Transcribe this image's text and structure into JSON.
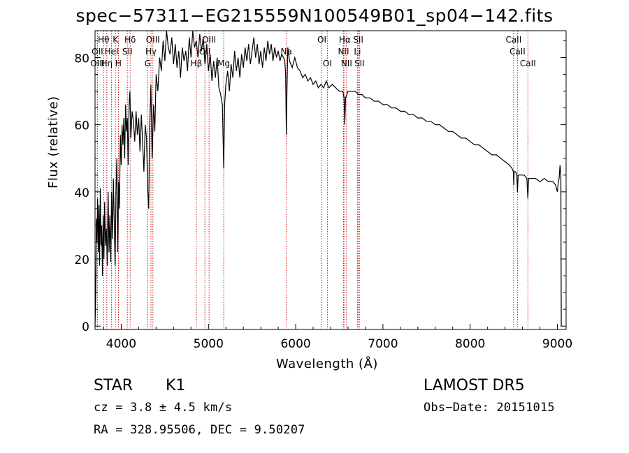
{
  "chart_data": {
    "type": "line",
    "title": "spec−57311−EG215559N100549B01_sp04−142.fits",
    "xlabel": "Wavelength (Å)",
    "ylabel": "Flux (relative)",
    "xlim": [
      3700,
      9100
    ],
    "ylim": [
      -1,
      88
    ],
    "x_ticks": [
      4000,
      5000,
      6000,
      7000,
      8000,
      9000
    ],
    "y_ticks": [
      0,
      20,
      40,
      60,
      80
    ],
    "grid": false,
    "series": [
      {
        "points": [
          [
            3700,
            0
          ],
          [
            3708,
            10
          ],
          [
            3715,
            32
          ],
          [
            3722,
            25
          ],
          [
            3730,
            38
          ],
          [
            3738,
            22
          ],
          [
            3745,
            36
          ],
          [
            3752,
            18
          ],
          [
            3760,
            41
          ],
          [
            3768,
            24
          ],
          [
            3776,
            30
          ],
          [
            3785,
            15
          ],
          [
            3793,
            33
          ],
          [
            3802,
            20
          ],
          [
            3810,
            37
          ],
          [
            3820,
            24
          ],
          [
            3830,
            29
          ],
          [
            3840,
            18
          ],
          [
            3850,
            40
          ],
          [
            3860,
            22
          ],
          [
            3870,
            33
          ],
          [
            3880,
            19
          ],
          [
            3890,
            40
          ],
          [
            3900,
            26
          ],
          [
            3910,
            44
          ],
          [
            3920,
            31
          ],
          [
            3930,
            18
          ],
          [
            3940,
            40
          ],
          [
            3950,
            50
          ],
          [
            3960,
            22
          ],
          [
            3970,
            43
          ],
          [
            3980,
            35
          ],
          [
            3990,
            57
          ],
          [
            4000,
            48
          ],
          [
            4010,
            60
          ],
          [
            4020,
            54
          ],
          [
            4030,
            62
          ],
          [
            4040,
            50
          ],
          [
            4050,
            66
          ],
          [
            4060,
            58
          ],
          [
            4070,
            62
          ],
          [
            4080,
            48
          ],
          [
            4090,
            66
          ],
          [
            4100,
            70
          ],
          [
            4110,
            56
          ],
          [
            4125,
            64
          ],
          [
            4140,
            61
          ],
          [
            4155,
            55
          ],
          [
            4170,
            64
          ],
          [
            4185,
            57
          ],
          [
            4200,
            62
          ],
          [
            4215,
            52
          ],
          [
            4230,
            63
          ],
          [
            4245,
            55
          ],
          [
            4260,
            46
          ],
          [
            4275,
            60
          ],
          [
            4290,
            56
          ],
          [
            4305,
            40
          ],
          [
            4315,
            35
          ],
          [
            4325,
            58
          ],
          [
            4340,
            72
          ],
          [
            4355,
            50
          ],
          [
            4370,
            66
          ],
          [
            4385,
            58
          ],
          [
            4400,
            75
          ],
          [
            4420,
            70
          ],
          [
            4440,
            80
          ],
          [
            4460,
            76
          ],
          [
            4480,
            85
          ],
          [
            4500,
            79
          ],
          [
            4520,
            88
          ],
          [
            4540,
            83
          ],
          [
            4560,
            81
          ],
          [
            4580,
            86
          ],
          [
            4600,
            78
          ],
          [
            4620,
            84
          ],
          [
            4640,
            77
          ],
          [
            4660,
            82
          ],
          [
            4680,
            74
          ],
          [
            4700,
            83
          ],
          [
            4720,
            79
          ],
          [
            4740,
            82
          ],
          [
            4760,
            76
          ],
          [
            4780,
            86
          ],
          [
            4800,
            80
          ],
          [
            4820,
            88
          ],
          [
            4840,
            83
          ],
          [
            4860,
            85
          ],
          [
            4880,
            80
          ],
          [
            4900,
            87
          ],
          [
            4920,
            82
          ],
          [
            4940,
            86
          ],
          [
            4960,
            78
          ],
          [
            4980,
            84
          ],
          [
            5000,
            76
          ],
          [
            5020,
            81
          ],
          [
            5040,
            73
          ],
          [
            5060,
            79
          ],
          [
            5080,
            74
          ],
          [
            5100,
            80
          ],
          [
            5120,
            71
          ],
          [
            5140,
            69
          ],
          [
            5160,
            66
          ],
          [
            5175,
            47
          ],
          [
            5185,
            66
          ],
          [
            5200,
            72
          ],
          [
            5220,
            76
          ],
          [
            5240,
            70
          ],
          [
            5260,
            78
          ],
          [
            5280,
            74
          ],
          [
            5300,
            82
          ],
          [
            5320,
            76
          ],
          [
            5340,
            80
          ],
          [
            5360,
            74
          ],
          [
            5380,
            81
          ],
          [
            5400,
            77
          ],
          [
            5420,
            83
          ],
          [
            5440,
            79
          ],
          [
            5460,
            84
          ],
          [
            5480,
            78
          ],
          [
            5500,
            82
          ],
          [
            5520,
            86
          ],
          [
            5540,
            80
          ],
          [
            5560,
            84
          ],
          [
            5580,
            78
          ],
          [
            5600,
            82
          ],
          [
            5620,
            77
          ],
          [
            5640,
            83
          ],
          [
            5660,
            79
          ],
          [
            5680,
            85
          ],
          [
            5700,
            81
          ],
          [
            5720,
            84
          ],
          [
            5740,
            79
          ],
          [
            5760,
            83
          ],
          [
            5780,
            80
          ],
          [
            5800,
            82
          ],
          [
            5820,
            79
          ],
          [
            5840,
            81
          ],
          [
            5860,
            80
          ],
          [
            5875,
            79
          ],
          [
            5885,
            75
          ],
          [
            5893,
            57
          ],
          [
            5900,
            70
          ],
          [
            5910,
            83
          ],
          [
            5930,
            79
          ],
          [
            5960,
            77
          ],
          [
            5990,
            80
          ],
          [
            6020,
            77
          ],
          [
            6050,
            76
          ],
          [
            6080,
            74
          ],
          [
            6110,
            75
          ],
          [
            6140,
            73
          ],
          [
            6170,
            74
          ],
          [
            6200,
            72
          ],
          [
            6230,
            73
          ],
          [
            6260,
            71
          ],
          [
            6290,
            72
          ],
          [
            6320,
            71
          ],
          [
            6350,
            73
          ],
          [
            6380,
            71
          ],
          [
            6420,
            72
          ],
          [
            6460,
            71
          ],
          [
            6500,
            70
          ],
          [
            6540,
            70
          ],
          [
            6555,
            68
          ],
          [
            6563,
            60
          ],
          [
            6572,
            68
          ],
          [
            6600,
            70
          ],
          [
            6640,
            70
          ],
          [
            6680,
            70
          ],
          [
            6720,
            69
          ],
          [
            6760,
            69
          ],
          [
            6800,
            68
          ],
          [
            6850,
            68
          ],
          [
            6900,
            67
          ],
          [
            6950,
            67
          ],
          [
            7000,
            66
          ],
          [
            7050,
            66
          ],
          [
            7100,
            65
          ],
          [
            7150,
            65
          ],
          [
            7200,
            64
          ],
          [
            7250,
            64
          ],
          [
            7300,
            63
          ],
          [
            7350,
            63
          ],
          [
            7400,
            62
          ],
          [
            7450,
            62
          ],
          [
            7500,
            61
          ],
          [
            7550,
            61
          ],
          [
            7600,
            60
          ],
          [
            7650,
            60
          ],
          [
            7700,
            59
          ],
          [
            7750,
            58
          ],
          [
            7800,
            58
          ],
          [
            7850,
            57
          ],
          [
            7900,
            56
          ],
          [
            7950,
            56
          ],
          [
            8000,
            55
          ],
          [
            8050,
            54
          ],
          [
            8100,
            54
          ],
          [
            8150,
            53
          ],
          [
            8200,
            52
          ],
          [
            8250,
            51
          ],
          [
            8300,
            51
          ],
          [
            8350,
            50
          ],
          [
            8400,
            49
          ],
          [
            8450,
            48
          ],
          [
            8480,
            47
          ],
          [
            8495,
            46
          ],
          [
            8500,
            42
          ],
          [
            8505,
            46
          ],
          [
            8520,
            46
          ],
          [
            8535,
            45
          ],
          [
            8542,
            40
          ],
          [
            8550,
            45
          ],
          [
            8580,
            45
          ],
          [
            8620,
            45
          ],
          [
            8650,
            44
          ],
          [
            8662,
            38
          ],
          [
            8670,
            44
          ],
          [
            8700,
            44
          ],
          [
            8750,
            44
          ],
          [
            8800,
            43
          ],
          [
            8850,
            44
          ],
          [
            8900,
            43
          ],
          [
            8950,
            43
          ],
          [
            8980,
            42
          ],
          [
            9000,
            40
          ],
          [
            9010,
            43
          ],
          [
            9020,
            44
          ],
          [
            9030,
            48
          ],
          [
            9040,
            45
          ],
          [
            9045,
            0
          ]
        ]
      }
    ],
    "line_markers": [
      {
        "label": "Hθ",
        "wavelength": 3798,
        "row": 0
      },
      {
        "label": "K",
        "wavelength": 3934,
        "row": 0
      },
      {
        "label": "Hδ",
        "wavelength": 4102,
        "row": 0
      },
      {
        "label": "OIII",
        "wavelength": 4363,
        "row": 0
      },
      {
        "label": "OIII",
        "wavelength": 5007,
        "row": 0
      },
      {
        "label": "OI",
        "wavelength": 6300,
        "row": 0
      },
      {
        "label": "Hα",
        "wavelength": 6563,
        "row": 0
      },
      {
        "label": "SII",
        "wavelength": 6717,
        "row": 0
      },
      {
        "label": "CaII",
        "wavelength": 8498,
        "row": 0
      },
      {
        "label": "OII",
        "wavelength": 3727,
        "row": 1
      },
      {
        "label": "HeI",
        "wavelength": 3889,
        "row": 1
      },
      {
        "label": "SII",
        "wavelength": 4070,
        "row": 1
      },
      {
        "label": "Hγ",
        "wavelength": 4341,
        "row": 1
      },
      {
        "label": "OII",
        "wavelength": 4959,
        "row": 1
      },
      {
        "label": "Na",
        "wavelength": 5893,
        "row": 1
      },
      {
        "label": "NII",
        "wavelength": 6548,
        "row": 1
      },
      {
        "label": "Li",
        "wavelength": 6708,
        "row": 1
      },
      {
        "label": "CaII",
        "wavelength": 8542,
        "row": 1
      },
      {
        "label": "OIII",
        "wavelength": 3727,
        "row": 2
      },
      {
        "label": "Hη",
        "wavelength": 3835,
        "row": 2
      },
      {
        "label": "H",
        "wavelength": 3968,
        "row": 2
      },
      {
        "label": "G",
        "wavelength": 4304,
        "row": 2
      },
      {
        "label": "Hβ",
        "wavelength": 4861,
        "row": 2
      },
      {
        "label": "Mg",
        "wavelength": 5175,
        "row": 2
      },
      {
        "label": "OI",
        "wavelength": 6363,
        "row": 2
      },
      {
        "label": "NII",
        "wavelength": 6583,
        "row": 2
      },
      {
        "label": "SII",
        "wavelength": 6731,
        "row": 2
      },
      {
        "label": "CaII",
        "wavelength": 8662,
        "row": 2
      }
    ],
    "marker_color": "#cc0000",
    "line_color": "#000000"
  },
  "info": {
    "object_class": "STAR",
    "subclass": "K1",
    "survey": "LAMOST DR5",
    "cz": "cz = 3.8 ± 4.5 km/s",
    "obs_date": "Obs−Date: 20151015",
    "coords": "RA = 328.95506, DEC =   9.50207"
  }
}
